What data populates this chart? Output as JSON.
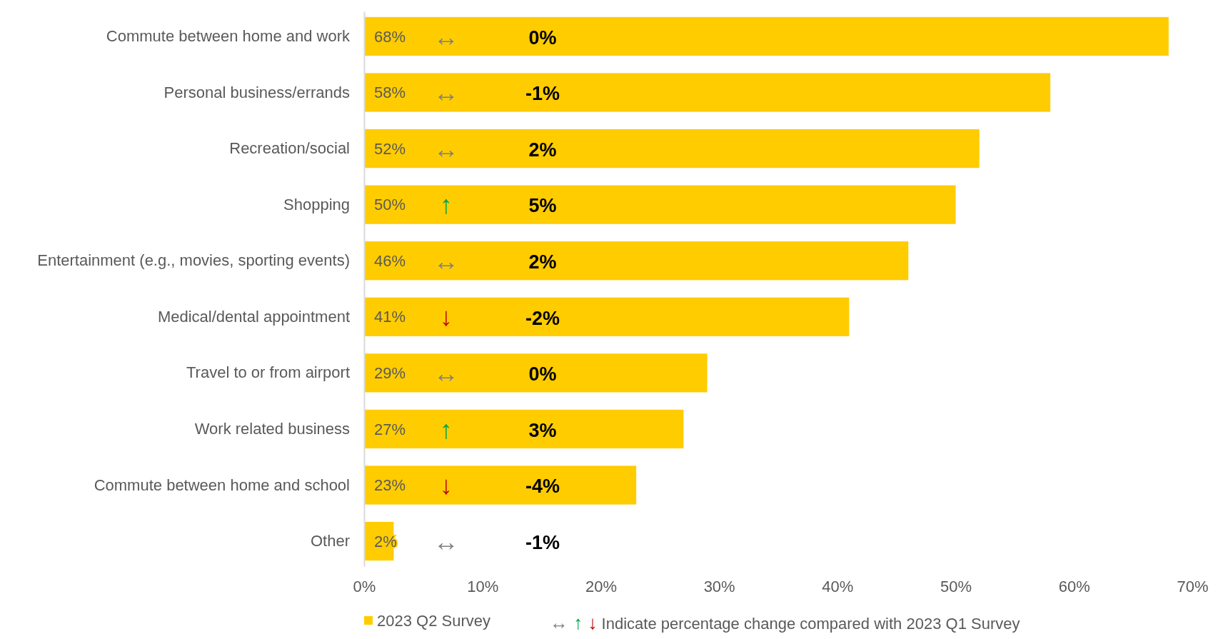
{
  "chart_data": {
    "type": "bar",
    "orientation": "horizontal",
    "categories": [
      "Commute between home and work",
      "Personal business/errands",
      "Recreation/social",
      "Shopping",
      "Entertainment (e.g., movies, sporting events)",
      "Medical/dental appointment",
      "Travel to or from airport",
      "Work related business",
      "Commute between home and school",
      "Other"
    ],
    "series": [
      {
        "name": "2023 Q2 Survey",
        "color": "#ffcc00",
        "values": [
          68,
          58,
          52,
          50,
          46,
          41,
          29,
          27,
          23,
          2.5
        ],
        "value_labels": [
          "68%",
          "58%",
          "52%",
          "50%",
          "46%",
          "41%",
          "29%",
          "27%",
          "23%",
          "2%"
        ]
      }
    ],
    "xlim": [
      0,
      70
    ],
    "xticks": [
      {
        "value": 0,
        "label": "0%"
      },
      {
        "value": 10,
        "label": "10%"
      },
      {
        "value": 20,
        "label": "20%"
      },
      {
        "value": 30,
        "label": "30%"
      },
      {
        "value": 40,
        "label": "40%"
      },
      {
        "value": 50,
        "label": "50%"
      },
      {
        "value": 60,
        "label": "60%"
      },
      {
        "value": 70,
        "label": "70%"
      }
    ],
    "legend": "bottom",
    "grid": false,
    "annotations": [
      "↔",
      "0%",
      "↔",
      "-1%",
      "↔",
      "2%",
      "↑",
      "5%",
      "↔",
      "2%",
      "↓",
      "-2%",
      "↔",
      "0%",
      "↑",
      "3%",
      "↓",
      "-4%",
      "↔",
      "-1%",
      "↔ ↑ ↓ Indicate percentage change compared with 2023 Q1 Survey"
    ]
  }
}
